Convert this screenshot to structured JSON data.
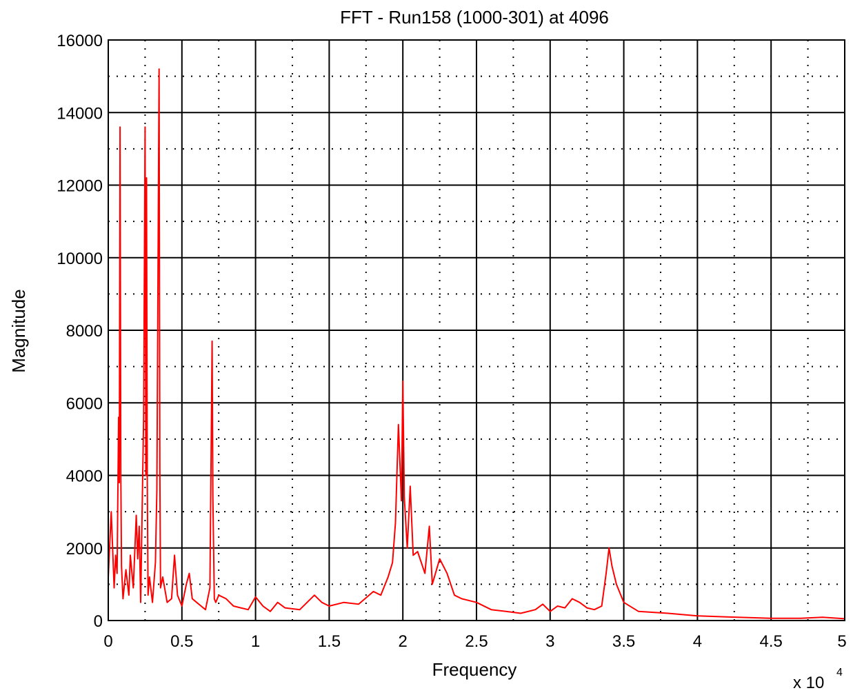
{
  "chart_data": {
    "type": "line",
    "title": "FFT - Run158 (1000-301) at 4096",
    "xlabel": "Frequency",
    "ylabel": "Magnitude",
    "x_multiplier": "x 10",
    "x_multiplier_exponent": "4",
    "xlim": [
      0,
      5
    ],
    "ylim": [
      0,
      16000
    ],
    "xticks": [
      0,
      0.5,
      1,
      1.5,
      2,
      2.5,
      3,
      3.5,
      4,
      4.5,
      5
    ],
    "xtick_labels": [
      "0",
      "0.5",
      "1",
      "1.5",
      "2",
      "2.5",
      "3",
      "3.5",
      "4",
      "4.5",
      "5"
    ],
    "yticks": [
      0,
      2000,
      4000,
      6000,
      8000,
      10000,
      12000,
      14000,
      16000
    ],
    "ytick_labels": [
      "0",
      "2000",
      "4000",
      "6000",
      "8000",
      "10000",
      "12000",
      "14000",
      "16000"
    ],
    "grid": true,
    "line_color": "#ff0000",
    "series": [
      {
        "x": [
          0,
          0.02,
          0.04,
          0.05,
          0.06,
          0.07,
          0.075,
          0.08,
          0.085,
          0.09,
          0.1,
          0.12,
          0.14,
          0.15,
          0.17,
          0.19,
          0.2,
          0.21,
          0.22,
          0.24,
          0.25,
          0.255,
          0.26,
          0.265,
          0.27,
          0.28,
          0.3,
          0.32,
          0.33,
          0.345,
          0.35,
          0.355,
          0.37,
          0.4,
          0.43,
          0.45,
          0.47,
          0.5,
          0.53,
          0.55,
          0.57,
          0.6,
          0.63,
          0.66,
          0.69,
          0.7,
          0.705,
          0.71,
          0.72,
          0.73,
          0.75,
          0.8,
          0.85,
          0.9,
          0.95,
          1.0,
          1.05,
          1.1,
          1.15,
          1.2,
          1.3,
          1.4,
          1.45,
          1.5,
          1.6,
          1.7,
          1.8,
          1.85,
          1.9,
          1.93,
          1.95,
          1.97,
          1.99,
          2.0,
          2.01,
          2.03,
          2.05,
          2.07,
          2.1,
          2.15,
          2.18,
          2.2,
          2.25,
          2.3,
          2.35,
          2.4,
          2.5,
          2.6,
          2.7,
          2.8,
          2.9,
          2.95,
          3.0,
          3.05,
          3.1,
          3.15,
          3.2,
          3.25,
          3.3,
          3.35,
          3.38,
          3.4,
          3.42,
          3.45,
          3.5,
          3.6,
          3.8,
          4.0,
          4.2,
          4.5,
          4.7,
          4.85,
          5.0
        ],
        "y": [
          1200,
          3000,
          900,
          1800,
          1300,
          5600,
          3800,
          13600,
          4100,
          1500,
          600,
          1400,
          700,
          1800,
          900,
          2900,
          1700,
          2600,
          500,
          5600,
          13600,
          4000,
          12200,
          3800,
          700,
          1200,
          500,
          1600,
          3600,
          15200,
          4200,
          900,
          1200,
          500,
          600,
          1800,
          700,
          400,
          1000,
          1300,
          600,
          500,
          400,
          300,
          900,
          5300,
          7700,
          3400,
          600,
          500,
          700,
          600,
          400,
          350,
          300,
          650,
          400,
          250,
          500,
          350,
          300,
          700,
          500,
          400,
          500,
          450,
          800,
          700,
          1200,
          1600,
          2700,
          5400,
          3300,
          6600,
          3400,
          2000,
          3700,
          1800,
          1900,
          1300,
          2600,
          1000,
          1700,
          1300,
          700,
          600,
          500,
          300,
          250,
          200,
          300,
          450,
          250,
          400,
          350,
          600,
          500,
          350,
          300,
          400,
          1300,
          2000,
          1500,
          1000,
          500,
          250,
          200,
          130,
          100,
          60,
          60,
          90,
          50
        ]
      }
    ]
  }
}
